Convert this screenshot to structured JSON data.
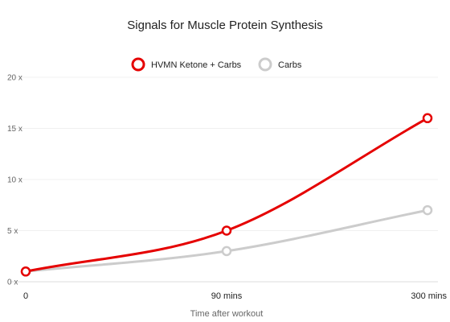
{
  "chart_data": {
    "type": "line",
    "title": "Signals for Muscle Protein Synthesis",
    "xlabel": "Time after workout",
    "ylabel": "",
    "categories": [
      "0",
      "90 mins",
      "300 mins"
    ],
    "y_tick_labels": [
      "0 x",
      "5 x",
      "10 x",
      "15 x",
      "20 x"
    ],
    "ylim": [
      0,
      20
    ],
    "grid": true,
    "legend_position": "top-center",
    "series": [
      {
        "name": "HVMN Ketone + Carbs",
        "color": "#e50000",
        "values": [
          1,
          5,
          16
        ]
      },
      {
        "name": "Carbs",
        "color": "#cccccc",
        "values": [
          1,
          3,
          7
        ]
      }
    ]
  }
}
